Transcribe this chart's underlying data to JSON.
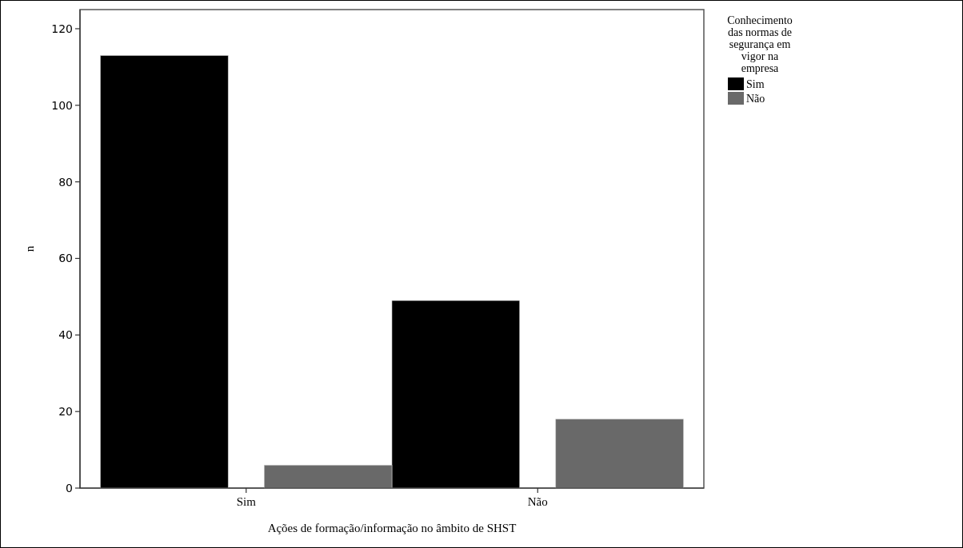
{
  "chart_data": {
    "type": "bar",
    "xlabel": "Ações de formação/informação no âmbito de SHST",
    "ylabel": "n",
    "legend_title": "Conhecimento das normas de segurança em vigor na empresa",
    "categories": [
      "Sim",
      "Não"
    ],
    "series": [
      {
        "name": "Sim",
        "color": "#000000",
        "values": [
          113,
          49
        ]
      },
      {
        "name": "Não",
        "color": "#696969",
        "values": [
          6,
          18
        ]
      }
    ],
    "ylim": [
      0,
      125
    ],
    "yticks": [
      0,
      20,
      40,
      60,
      80,
      100,
      120
    ],
    "grid": false,
    "legend": "right"
  }
}
